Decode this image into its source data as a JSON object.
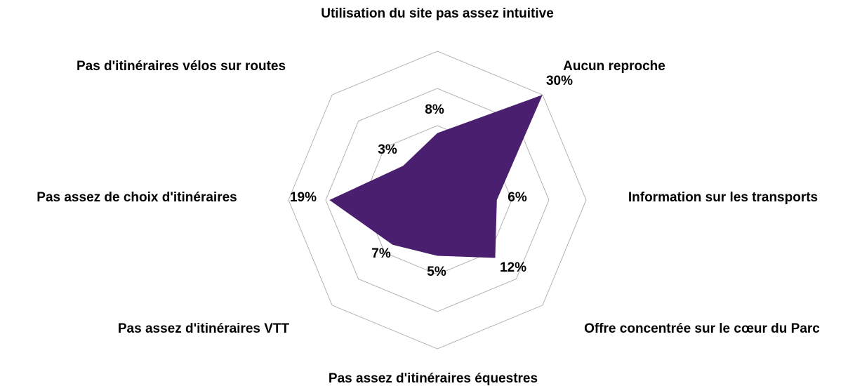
{
  "chart_data": {
    "type": "radar",
    "categories": [
      "Utilisation du site pas assez intuitive",
      "Aucun reproche",
      "Information sur les transports",
      "Offre concentrée sur le cœur du Parc",
      "Pas assez d'itinéraires équestres",
      "Pas assez d'itinéraires VTT",
      "Pas assez de choix d'itinéraires",
      "Pas d'itinéraires vélos sur routes"
    ],
    "values": [
      8,
      30,
      6,
      12,
      5,
      7,
      19,
      3
    ],
    "value_labels": [
      "8%",
      "30%",
      "6%",
      "12%",
      "5%",
      "7%",
      "19%",
      "3%"
    ],
    "color": "#4b1f6f",
    "ylim": [
      -10,
      30
    ],
    "yticks": [
      -10,
      0,
      10,
      20,
      30
    ],
    "grid": true
  }
}
